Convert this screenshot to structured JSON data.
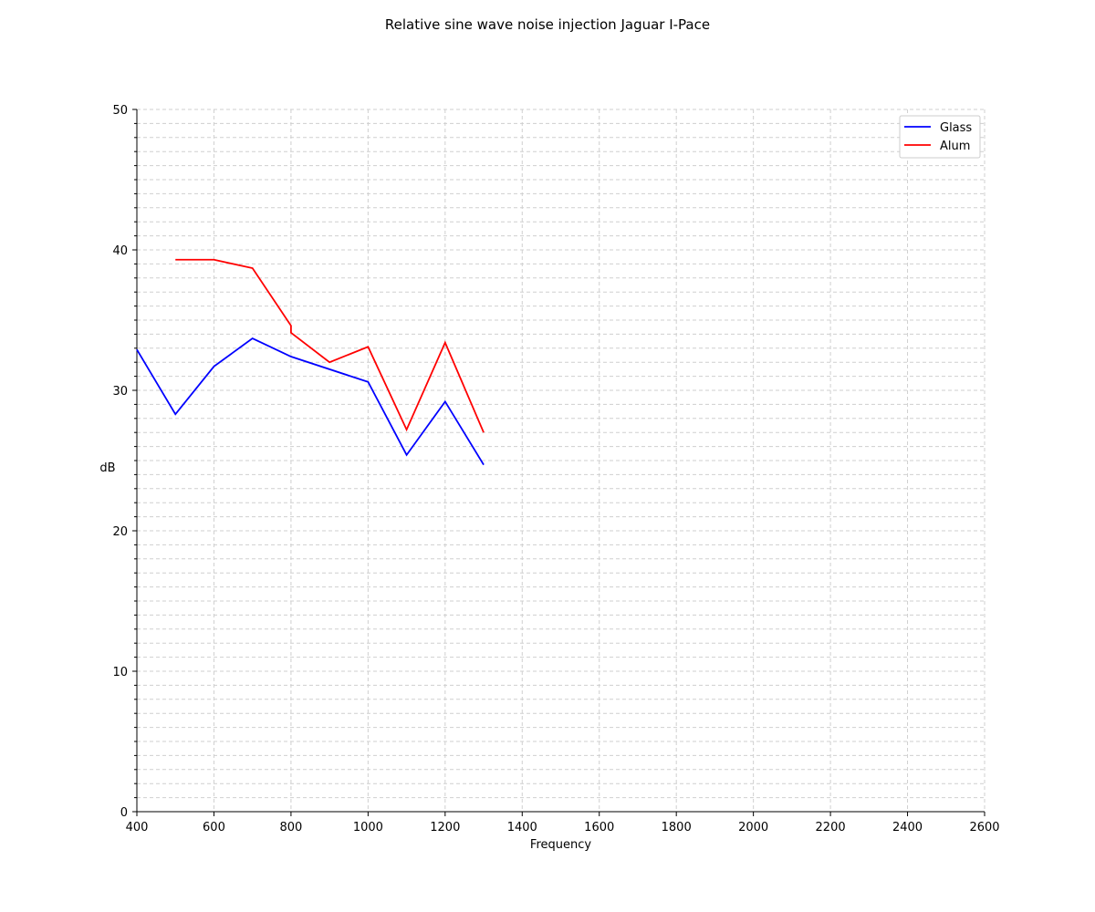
{
  "chart_data": {
    "type": "line",
    "title": "Relative sine wave noise injection Jaguar I-Pace",
    "xlabel": "Frequency",
    "ylabel": "dB",
    "xlim": [
      400,
      2600
    ],
    "ylim": [
      0,
      50
    ],
    "x_ticks": [
      400,
      600,
      800,
      1000,
      1200,
      1400,
      1600,
      1800,
      2000,
      2200,
      2400,
      2600
    ],
    "y_ticks": [
      0,
      10,
      20,
      30,
      40,
      50
    ],
    "y_minor_step": 1,
    "grid": true,
    "legend_position": "top-right",
    "series": [
      {
        "name": "Glass",
        "color": "#0000ff",
        "points": [
          [
            400,
            32.9
          ],
          [
            500,
            28.3
          ],
          [
            600,
            31.7
          ],
          [
            700,
            33.7
          ],
          [
            800,
            32.4
          ],
          [
            1000,
            30.6
          ],
          [
            1100,
            25.4
          ],
          [
            1200,
            29.2
          ],
          [
            1300,
            24.7
          ]
        ]
      },
      {
        "name": "Alum",
        "color": "#ff0000",
        "points": [
          [
            500,
            39.3
          ],
          [
            600,
            39.3
          ],
          [
            700,
            38.7
          ],
          [
            800,
            34.6
          ],
          [
            800,
            34.1
          ],
          [
            900,
            32.0
          ],
          [
            1000,
            33.1
          ],
          [
            1100,
            27.2
          ],
          [
            1200,
            33.4
          ],
          [
            1300,
            27.0
          ]
        ]
      }
    ]
  }
}
